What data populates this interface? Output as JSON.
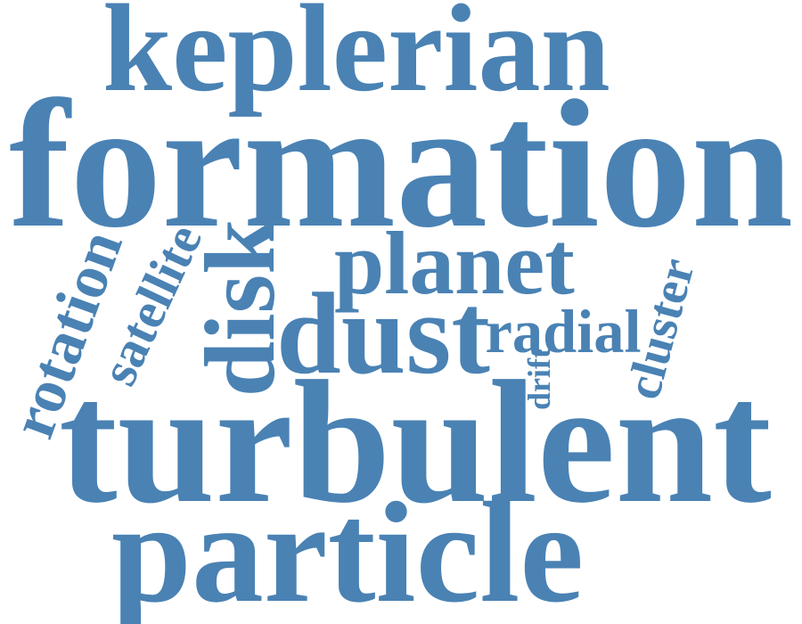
{
  "accent_color": "#4a82b4",
  "words": {
    "keplerian": "keplerian",
    "formation": "formation",
    "planet": "planet",
    "dust": "dust",
    "radial": "radial",
    "disk": "disk",
    "satellite": "satellite",
    "rotation": "rotation",
    "cluster": "cluster",
    "drift": "drift",
    "turbulent": "turbulent",
    "particle": "particle"
  }
}
